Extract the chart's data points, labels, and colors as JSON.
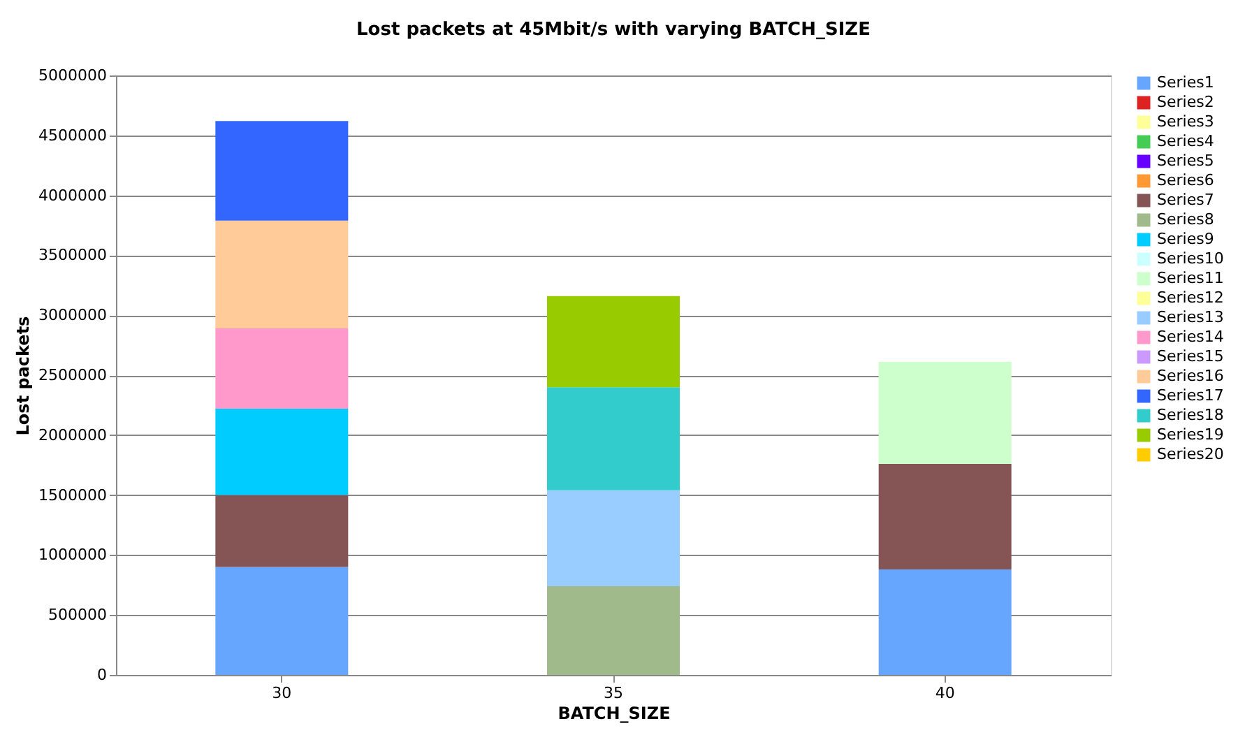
{
  "chart_data": {
    "type": "bar",
    "stacked": true,
    "title": "Lost packets at 45Mbit/s with varying BATCH_SIZE",
    "xlabel": "BATCH_SIZE",
    "ylabel": "Lost packets",
    "categories": [
      "30",
      "35",
      "40"
    ],
    "ylim": [
      0,
      5000000
    ],
    "yticks": [
      0,
      500000,
      1000000,
      1500000,
      2000000,
      2500000,
      3000000,
      3500000,
      4000000,
      4500000,
      5000000
    ],
    "grid": "y",
    "legend": "right",
    "series": [
      {
        "name": "Series1",
        "color": "#66a6ff",
        "values": [
          900000,
          null,
          880000
        ]
      },
      {
        "name": "Series2",
        "color": "#dd2222",
        "values": [
          null,
          null,
          null
        ]
      },
      {
        "name": "Series3",
        "color": "#ffff99",
        "values": [
          null,
          null,
          null
        ]
      },
      {
        "name": "Series4",
        "color": "#44cc55",
        "values": [
          null,
          null,
          null
        ]
      },
      {
        "name": "Series5",
        "color": "#6600ff",
        "values": [
          null,
          null,
          null
        ]
      },
      {
        "name": "Series6",
        "color": "#ff9933",
        "values": [
          null,
          null,
          null
        ]
      },
      {
        "name": "Series7",
        "color": "#855555",
        "values": [
          600000,
          null,
          880000
        ]
      },
      {
        "name": "Series8",
        "color": "#a0ba8c",
        "values": [
          null,
          740000,
          null
        ]
      },
      {
        "name": "Series9",
        "color": "#00ccff",
        "values": [
          720000,
          null,
          null
        ]
      },
      {
        "name": "Series10",
        "color": "#ccffff",
        "values": [
          null,
          null,
          null
        ]
      },
      {
        "name": "Series11",
        "color": "#ccffcc",
        "values": [
          null,
          null,
          850000
        ]
      },
      {
        "name": "Series12",
        "color": "#ffff99",
        "values": [
          null,
          null,
          null
        ]
      },
      {
        "name": "Series13",
        "color": "#99ccff",
        "values": [
          null,
          800000,
          null
        ]
      },
      {
        "name": "Series14",
        "color": "#ff99cc",
        "values": [
          670000,
          null,
          null
        ]
      },
      {
        "name": "Series15",
        "color": "#cc99ff",
        "values": [
          null,
          null,
          null
        ]
      },
      {
        "name": "Series16",
        "color": "#ffcc99",
        "values": [
          900000,
          null,
          null
        ]
      },
      {
        "name": "Series17",
        "color": "#3366ff",
        "values": [
          830000,
          null,
          null
        ]
      },
      {
        "name": "Series18",
        "color": "#33cccc",
        "values": [
          null,
          860000,
          null
        ]
      },
      {
        "name": "Series19",
        "color": "#99cc00",
        "values": [
          null,
          760000,
          null
        ]
      },
      {
        "name": "Series20",
        "color": "#ffcc00",
        "values": [
          null,
          null,
          null
        ]
      }
    ]
  }
}
